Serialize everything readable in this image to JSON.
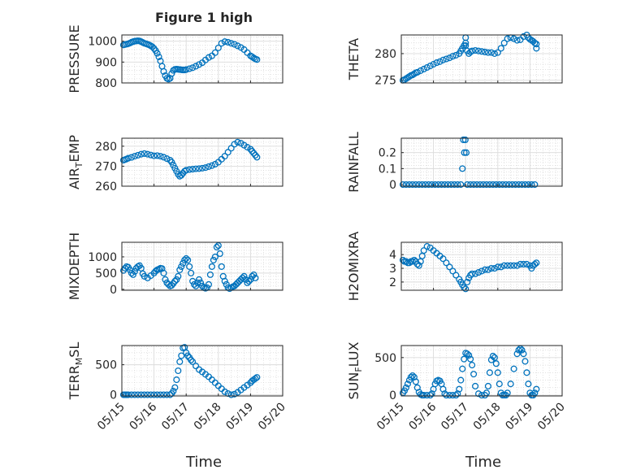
{
  "figure": {
    "title": "Figure 1 high",
    "marker_color": "#0072bd",
    "x_ticks": [
      "05/15",
      "05/16",
      "05/17",
      "05/18",
      "05/19",
      "05/20"
    ],
    "x_axis_label": "Time"
  },
  "chart_data": [
    {
      "type": "scatter",
      "name": "pressure",
      "title": "Figure 1 high",
      "ylabel": "PRESSURE",
      "ylabel_base": "PRESSURE",
      "ylabel_sub": "",
      "ylabel_rest": "",
      "xlim": [
        0,
        5
      ],
      "ylim": [
        800,
        1030
      ],
      "yticks": [
        800,
        900,
        1000
      ],
      "show_xticks": false,
      "x": [
        0.05,
        0.1,
        0.15,
        0.2,
        0.25,
        0.3,
        0.35,
        0.4,
        0.45,
        0.5,
        0.55,
        0.6,
        0.65,
        0.7,
        0.75,
        0.8,
        0.85,
        0.9,
        0.95,
        1.0,
        1.05,
        1.1,
        1.15,
        1.2,
        1.25,
        1.3,
        1.35,
        1.4,
        1.45,
        1.5,
        1.55,
        1.6,
        1.65,
        1.7,
        1.75,
        1.8,
        1.85,
        1.9,
        1.95,
        2.0,
        2.1,
        2.2,
        2.3,
        2.4,
        2.5,
        2.6,
        2.7,
        2.8,
        2.9,
        3.0,
        3.1,
        3.2,
        3.3,
        3.4,
        3.5,
        3.6,
        3.7,
        3.8,
        3.9,
        4.0,
        4.05,
        4.1,
        4.15,
        4.2
      ],
      "y": [
        982,
        984,
        986,
        988,
        991,
        995,
        998,
        1000,
        1001,
        1002,
        1001,
        998,
        994,
        990,
        988,
        985,
        982,
        978,
        973,
        965,
        955,
        942,
        925,
        905,
        880,
        855,
        835,
        822,
        818,
        822,
        845,
        860,
        865,
        866,
        865,
        864,
        863,
        862,
        862,
        864,
        868,
        873,
        880,
        888,
        897,
        910,
        922,
        930,
        945,
        968,
        990,
        998,
        995,
        990,
        985,
        978,
        970,
        960,
        945,
        930,
        925,
        920,
        915,
        912
      ]
    },
    {
      "type": "scatter",
      "name": "theta",
      "title": "",
      "ylabel": "THETA",
      "ylabel_base": "THETA",
      "ylabel_sub": "",
      "ylabel_rest": "",
      "xlim": [
        0,
        5
      ],
      "ylim": [
        274.5,
        283.5
      ],
      "yticks": [
        275,
        280
      ],
      "show_xticks": false,
      "x": [
        0.05,
        0.1,
        0.15,
        0.2,
        0.25,
        0.3,
        0.35,
        0.4,
        0.45,
        0.5,
        0.6,
        0.7,
        0.8,
        0.9,
        1.0,
        1.1,
        1.2,
        1.3,
        1.4,
        1.5,
        1.6,
        1.7,
        1.8,
        1.85,
        1.9,
        1.95,
        2.0,
        2.0,
        2.0,
        2.05,
        2.1,
        2.15,
        2.2,
        2.3,
        2.4,
        2.5,
        2.6,
        2.7,
        2.8,
        2.9,
        3.0,
        3.1,
        3.2,
        3.3,
        3.4,
        3.5,
        3.6,
        3.7,
        3.8,
        3.9,
        3.95,
        4.0,
        4.05,
        4.1,
        4.15,
        4.2,
        4.2
      ],
      "y": [
        275.0,
        275.1,
        275.3,
        275.5,
        275.7,
        275.9,
        276.0,
        276.2,
        276.4,
        276.5,
        276.8,
        277.1,
        277.4,
        277.7,
        278.0,
        278.3,
        278.5,
        278.8,
        279.0,
        279.2,
        279.5,
        279.7,
        280.0,
        280.5,
        281.0,
        281.5,
        282.0,
        283.0,
        281.5,
        280.5,
        280.0,
        280.3,
        280.5,
        280.6,
        280.5,
        280.4,
        280.3,
        280.2,
        280.2,
        280.0,
        280.2,
        281.0,
        282.0,
        282.8,
        283.0,
        282.8,
        282.5,
        282.6,
        283.2,
        283.5,
        283.0,
        282.7,
        282.5,
        282.3,
        282.0,
        281.8,
        281.0
      ]
    },
    {
      "type": "scatter",
      "name": "air_temp",
      "title": "",
      "ylabel": "AIR_TEMP",
      "ylabel_base": "AIR",
      "ylabel_sub": "T",
      "ylabel_rest": "EMP",
      "xlim": [
        0,
        5
      ],
      "ylim": [
        260,
        284
      ],
      "yticks": [
        260,
        270,
        280
      ],
      "show_xticks": false,
      "x": [
        0.05,
        0.1,
        0.15,
        0.2,
        0.3,
        0.4,
        0.5,
        0.6,
        0.7,
        0.8,
        0.9,
        1.0,
        1.1,
        1.2,
        1.3,
        1.4,
        1.5,
        1.55,
        1.6,
        1.65,
        1.7,
        1.75,
        1.8,
        1.85,
        1.9,
        1.95,
        2.0,
        2.1,
        2.2,
        2.3,
        2.4,
        2.5,
        2.6,
        2.7,
        2.8,
        2.9,
        3.0,
        3.1,
        3.2,
        3.3,
        3.4,
        3.5,
        3.6,
        3.7,
        3.8,
        3.9,
        4.0,
        4.05,
        4.1,
        4.15,
        4.2
      ],
      "y": [
        273.0,
        273.3,
        273.6,
        274.0,
        274.4,
        275.0,
        275.5,
        276.0,
        276.3,
        276.0,
        275.6,
        275.2,
        275.3,
        275.0,
        274.5,
        273.8,
        273.0,
        272.0,
        270.5,
        269.0,
        267.5,
        266.0,
        265.0,
        265.5,
        266.5,
        267.5,
        268.0,
        268.3,
        268.5,
        268.7,
        268.8,
        269.0,
        269.3,
        269.8,
        270.3,
        271.0,
        272.0,
        273.5,
        275.0,
        277.0,
        279.0,
        281.0,
        282.0,
        281.5,
        280.5,
        279.5,
        278.5,
        277.5,
        276.5,
        275.5,
        274.5
      ]
    },
    {
      "type": "scatter",
      "name": "rainfall",
      "title": "",
      "ylabel": "RAINFALL",
      "ylabel_base": "RAINFALL",
      "ylabel_sub": "",
      "ylabel_rest": "",
      "xlim": [
        0,
        5
      ],
      "ylim": [
        -0.01,
        0.29
      ],
      "yticks": [
        0,
        0.1,
        0.2
      ],
      "show_xticks": false,
      "x": [
        0.05,
        0.15,
        0.25,
        0.35,
        0.45,
        0.55,
        0.65,
        0.75,
        0.85,
        0.95,
        1.05,
        1.15,
        1.25,
        1.35,
        1.45,
        1.55,
        1.65,
        1.75,
        1.85,
        1.9,
        1.93,
        1.96,
        1.99,
        2.02,
        2.05,
        2.15,
        2.25,
        2.35,
        2.45,
        2.55,
        2.65,
        2.75,
        2.85,
        2.95,
        3.05,
        3.15,
        3.25,
        3.35,
        3.45,
        3.55,
        3.65,
        3.75,
        3.85,
        3.95,
        4.05,
        4.15
      ],
      "y": [
        0,
        0,
        0,
        0,
        0,
        0,
        0,
        0,
        0,
        0,
        0,
        0,
        0,
        0,
        0,
        0,
        0,
        0,
        0,
        0.1,
        0.28,
        0.2,
        0.28,
        0.2,
        0,
        0,
        0,
        0,
        0,
        0,
        0,
        0,
        0,
        0,
        0,
        0,
        0,
        0,
        0,
        0,
        0,
        0,
        0,
        0,
        0,
        0
      ]
    },
    {
      "type": "scatter",
      "name": "mixdepth",
      "title": "",
      "ylabel": "MIXDEPTH",
      "ylabel_base": "MIXDEPTH",
      "ylabel_sub": "",
      "ylabel_rest": "",
      "xlim": [
        0,
        5
      ],
      "ylim": [
        -30,
        1450
      ],
      "yticks": [
        0,
        500,
        1000
      ],
      "show_xticks": false,
      "x": [
        0.05,
        0.1,
        0.15,
        0.2,
        0.25,
        0.3,
        0.35,
        0.4,
        0.45,
        0.5,
        0.55,
        0.6,
        0.65,
        0.7,
        0.8,
        0.9,
        1.0,
        1.05,
        1.1,
        1.15,
        1.2,
        1.25,
        1.3,
        1.35,
        1.4,
        1.45,
        1.5,
        1.55,
        1.6,
        1.65,
        1.7,
        1.75,
        1.8,
        1.85,
        1.9,
        1.95,
        2.0,
        2.05,
        2.1,
        2.15,
        2.2,
        2.25,
        2.3,
        2.35,
        2.4,
        2.45,
        2.5,
        2.55,
        2.6,
        2.65,
        2.7,
        2.75,
        2.8,
        2.85,
        2.9,
        2.95,
        3.0,
        3.05,
        3.1,
        3.15,
        3.2,
        3.25,
        3.3,
        3.35,
        3.4,
        3.45,
        3.5,
        3.55,
        3.6,
        3.65,
        3.7,
        3.75,
        3.8,
        3.85,
        3.9,
        3.95,
        4.0,
        4.05,
        4.1,
        4.15
      ],
      "y": [
        580,
        650,
        700,
        680,
        600,
        500,
        450,
        550,
        650,
        700,
        730,
        650,
        480,
        400,
        350,
        420,
        500,
        560,
        600,
        620,
        650,
        640,
        500,
        300,
        200,
        150,
        100,
        120,
        180,
        250,
        300,
        400,
        600,
        700,
        800,
        900,
        950,
        900,
        700,
        500,
        250,
        150,
        100,
        200,
        300,
        200,
        100,
        50,
        30,
        50,
        150,
        450,
        700,
        900,
        1000,
        1300,
        1350,
        1100,
        700,
        400,
        250,
        150,
        50,
        20,
        50,
        80,
        100,
        150,
        200,
        250,
        300,
        350,
        400,
        300,
        200,
        250,
        300,
        400,
        450,
        350
      ]
    },
    {
      "type": "scatter",
      "name": "h2omixra",
      "title": "",
      "ylabel": "H2OMIXRA",
      "ylabel_base": "H2OMIXRA",
      "ylabel_sub": "",
      "ylabel_rest": "",
      "xlim": [
        0,
        5
      ],
      "ylim": [
        1.4,
        4.9
      ],
      "yticks": [
        2,
        3,
        4
      ],
      "show_xticks": false,
      "x": [
        0.05,
        0.1,
        0.15,
        0.2,
        0.25,
        0.3,
        0.35,
        0.4,
        0.45,
        0.5,
        0.55,
        0.6,
        0.65,
        0.7,
        0.8,
        0.9,
        1.0,
        1.1,
        1.2,
        1.3,
        1.4,
        1.5,
        1.6,
        1.7,
        1.8,
        1.85,
        1.9,
        1.95,
        2.0,
        2.05,
        2.1,
        2.15,
        2.2,
        2.3,
        2.4,
        2.5,
        2.6,
        2.7,
        2.8,
        2.9,
        3.0,
        3.1,
        3.2,
        3.3,
        3.4,
        3.5,
        3.6,
        3.7,
        3.8,
        3.9,
        4.0,
        4.05,
        4.1,
        4.15,
        4.2
      ],
      "y": [
        3.6,
        3.5,
        3.5,
        3.4,
        3.4,
        3.5,
        3.5,
        3.6,
        3.5,
        3.3,
        3.2,
        3.5,
        3.9,
        4.3,
        4.6,
        4.5,
        4.3,
        4.1,
        3.9,
        3.7,
        3.4,
        3.1,
        2.8,
        2.5,
        2.2,
        2.0,
        1.8,
        1.6,
        1.5,
        2.0,
        2.3,
        2.5,
        2.6,
        2.6,
        2.7,
        2.8,
        2.9,
        2.9,
        3.0,
        3.0,
        3.1,
        3.1,
        3.2,
        3.2,
        3.2,
        3.2,
        3.2,
        3.3,
        3.3,
        3.3,
        3.2,
        3.0,
        3.2,
        3.3,
        3.4
      ]
    },
    {
      "type": "scatter",
      "name": "terr_msl",
      "title": "",
      "ylabel": "TERR_MSL",
      "ylabel_base": "TERR",
      "ylabel_sub": "M",
      "ylabel_rest": "SL",
      "xlim": [
        0,
        5
      ],
      "ylim": [
        -20,
        820
      ],
      "yticks": [
        0,
        500
      ],
      "show_xticks": true,
      "x": [
        0.05,
        0.1,
        0.15,
        0.2,
        0.3,
        0.4,
        0.5,
        0.6,
        0.7,
        0.8,
        0.9,
        1.0,
        1.1,
        1.2,
        1.3,
        1.4,
        1.5,
        1.55,
        1.6,
        1.65,
        1.7,
        1.75,
        1.8,
        1.85,
        1.9,
        1.95,
        2.0,
        2.05,
        2.1,
        2.15,
        2.2,
        2.3,
        2.4,
        2.5,
        2.6,
        2.7,
        2.8,
        2.9,
        3.0,
        3.1,
        3.2,
        3.3,
        3.4,
        3.5,
        3.6,
        3.7,
        3.8,
        3.9,
        4.0,
        4.05,
        4.1,
        4.15,
        4.2
      ],
      "y": [
        0,
        0,
        0,
        0,
        0,
        0,
        0,
        0,
        0,
        0,
        0,
        0,
        0,
        0,
        0,
        0,
        0,
        20,
        60,
        120,
        250,
        400,
        550,
        650,
        780,
        790,
        700,
        650,
        620,
        580,
        550,
        480,
        420,
        380,
        340,
        300,
        250,
        200,
        150,
        100,
        50,
        20,
        0,
        10,
        40,
        80,
        120,
        160,
        200,
        230,
        250,
        270,
        290
      ]
    },
    {
      "type": "scatter",
      "name": "sun_flux",
      "title": "",
      "ylabel": "SUN_FLUX",
      "ylabel_base": "SUN",
      "ylabel_sub": "F",
      "ylabel_rest": "LUX",
      "xlim": [
        0,
        5
      ],
      "ylim": [
        -10,
        660
      ],
      "yticks": [
        0,
        500
      ],
      "show_xticks": true,
      "x": [
        0.05,
        0.1,
        0.15,
        0.2,
        0.25,
        0.3,
        0.35,
        0.4,
        0.45,
        0.5,
        0.55,
        0.6,
        0.65,
        0.7,
        0.8,
        0.9,
        0.95,
        1.0,
        1.05,
        1.1,
        1.15,
        1.2,
        1.25,
        1.3,
        1.35,
        1.4,
        1.5,
        1.6,
        1.7,
        1.75,
        1.8,
        1.85,
        1.9,
        1.95,
        2.0,
        2.05,
        2.1,
        2.15,
        2.2,
        2.25,
        2.3,
        2.4,
        2.5,
        2.6,
        2.65,
        2.7,
        2.75,
        2.8,
        2.85,
        2.9,
        2.95,
        3.0,
        3.05,
        3.1,
        3.15,
        3.2,
        3.25,
        3.3,
        3.4,
        3.5,
        3.6,
        3.65,
        3.7,
        3.75,
        3.8,
        3.85,
        3.9,
        3.95,
        4.0,
        4.05,
        4.1,
        4.15,
        4.2
      ],
      "y": [
        30,
        60,
        100,
        150,
        200,
        240,
        260,
        240,
        180,
        100,
        40,
        10,
        0,
        0,
        0,
        0,
        20,
        80,
        150,
        190,
        200,
        190,
        150,
        80,
        20,
        0,
        0,
        0,
        0,
        20,
        80,
        200,
        350,
        480,
        560,
        550,
        530,
        480,
        400,
        280,
        120,
        20,
        0,
        0,
        30,
        120,
        300,
        470,
        520,
        500,
        420,
        300,
        150,
        30,
        0,
        0,
        0,
        30,
        150,
        350,
        550,
        600,
        620,
        600,
        550,
        450,
        300,
        150,
        30,
        0,
        0,
        30,
        80
      ]
    }
  ]
}
